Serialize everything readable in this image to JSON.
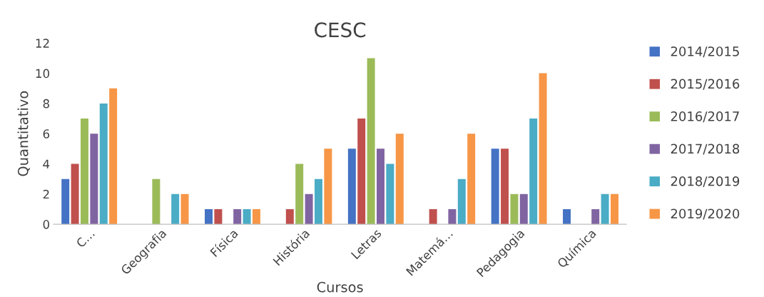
{
  "chart_data": {
    "type": "bar",
    "title": "CESC",
    "xlabel": "Cursos",
    "ylabel": "Quantitativo",
    "categories": [
      "C…",
      "Geografia",
      "Física",
      "História",
      "Letras",
      "Matemá…",
      "Pedagogia",
      "Química"
    ],
    "series": [
      {
        "name": "2014/2015",
        "color": "#4472c4",
        "values": [
          3,
          0,
          1,
          0,
          5,
          0,
          5,
          1
        ]
      },
      {
        "name": "2015/2016",
        "color": "#c0504d",
        "values": [
          4,
          0,
          1,
          1,
          7,
          1,
          5,
          0
        ]
      },
      {
        "name": "2016/2017",
        "color": "#9bbb59",
        "values": [
          7,
          3,
          0,
          4,
          11,
          0,
          2,
          0
        ]
      },
      {
        "name": "2017/2018",
        "color": "#8064a2",
        "values": [
          6,
          0,
          1,
          2,
          5,
          1,
          2,
          1
        ]
      },
      {
        "name": "2018/2019",
        "color": "#4bacc6",
        "values": [
          8,
          2,
          1,
          3,
          4,
          3,
          7,
          2
        ]
      },
      {
        "name": "2019/2020",
        "color": "#f79646",
        "values": [
          9,
          2,
          1,
          5,
          6,
          6,
          10,
          2
        ]
      }
    ],
    "ylim": [
      0,
      12
    ],
    "yticks": [
      0,
      2,
      4,
      6,
      8,
      10,
      12
    ],
    "grid": false,
    "legend": "right"
  }
}
